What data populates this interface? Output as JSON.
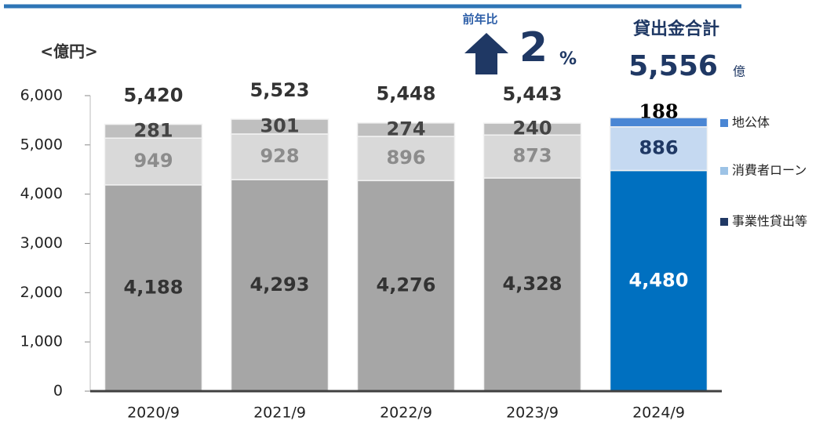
{
  "chart_data": {
    "type": "stacked_bar",
    "unit_label": "<億円>",
    "annotations": {
      "yoy_label": "前年比",
      "yoy_value": "2",
      "yoy_unit": "%",
      "total_title": "貸出金合計",
      "total_unit": "億"
    },
    "categories": [
      "2020/9",
      "2021/9",
      "2022/9",
      "2023/9",
      "2024/9"
    ],
    "series": [
      {
        "name": "事業性貸出等",
        "color": "#203864",
        "colors": [
          "#a6a6a6",
          "#a6a6a6",
          "#a6a6a6",
          "#a6a6a6",
          "#0070c0"
        ],
        "values": [
          4188,
          4293,
          4276,
          4328,
          4480
        ],
        "value_labels": [
          "4,188",
          "4,293",
          "4,276",
          "4,328",
          "4,480"
        ]
      },
      {
        "name": "消費者ローン",
        "color": "#9dc3e6",
        "colors": [
          "#d9d9d9",
          "#d9d9d9",
          "#d9d9d9",
          "#d9d9d9",
          "#c5d9f1"
        ],
        "values": [
          949,
          928,
          896,
          873,
          886
        ],
        "value_labels": [
          "949",
          "928",
          "896",
          "873",
          "886"
        ]
      },
      {
        "name": "地公体",
        "color": "#4a86d4",
        "colors": [
          "#bfbfbf",
          "#bfbfbf",
          "#bfbfbf",
          "#bfbfbf",
          "#4a86d4"
        ],
        "values": [
          281,
          301,
          274,
          240,
          188
        ]
      }
    ],
    "totals": [
      5420,
      5523,
      5448,
      5443,
      5556
    ],
    "total_labels": [
      "5,420",
      "5,523",
      "5,448",
      "5,443",
      "5,556"
    ],
    "ylim": [
      0,
      6000
    ],
    "yticks": [
      0,
      {
        "value": 1000,
        "label": "1,000"
      },
      {
        "value": 2000,
        "label": "2,000"
      },
      {
        "value": 3000,
        "label": "3,000"
      },
      {
        "value": 4000,
        "label": "4,000"
      },
      {
        "value": 5000,
        "label": "5,000"
      },
      {
        "value": 6000,
        "label": "6,000"
      }
    ]
  }
}
